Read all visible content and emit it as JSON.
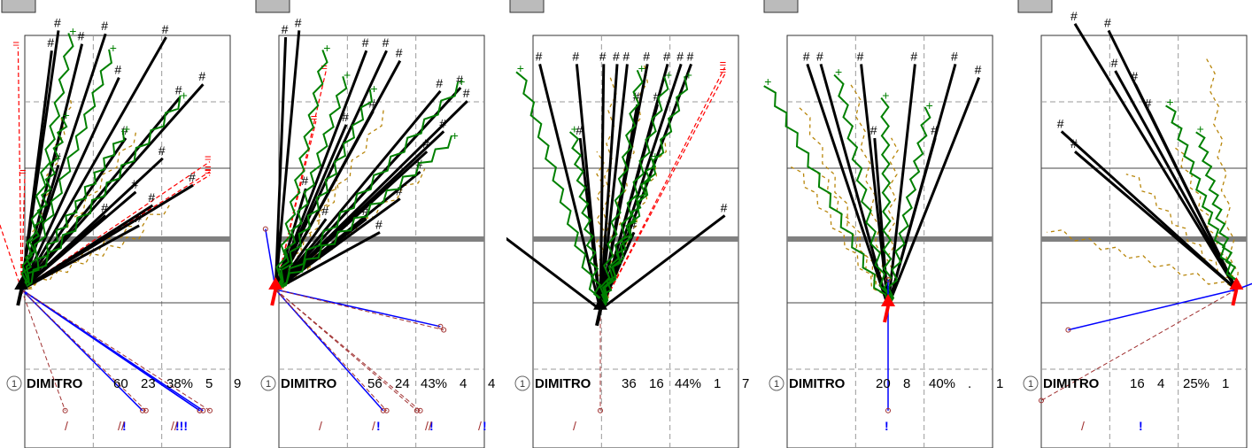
{
  "chart_data": {
    "type": "scatter",
    "panels": [
      {
        "player_number": "1",
        "player_name": "DIMITRO",
        "stats": [
          "60",
          "23",
          "38%",
          "5",
          "9"
        ],
        "shooter_marker_color": "#000000",
        "origin": [
          -1.05,
          -0.75
        ],
        "shot_endpoints": [
          [
            -0.5,
            3.1
          ],
          [
            0.2,
            3.05
          ],
          [
            1.1,
            3.0
          ],
          [
            1.3,
            2.1
          ],
          [
            1.65,
            2.3
          ],
          [
            0.5,
            1.5
          ],
          [
            1.05,
            1.2
          ],
          [
            0.65,
            0.7
          ],
          [
            0.9,
            0.5
          ],
          [
            0.2,
            0.35
          ],
          [
            0.7,
            0.2
          ],
          [
            -0.5,
            1.1
          ],
          [
            1.5,
            0.8
          ],
          [
            0.4,
            2.4
          ],
          [
            -0.6,
            2.8
          ],
          [
            -0.15,
            2.9
          ]
        ],
        "green_endpoints": [
          [
            -0.3,
            3.05
          ],
          [
            0.3,
            2.8
          ],
          [
            1.35,
            2.1
          ],
          [
            0.5,
            1.6
          ],
          [
            -0.4,
            1.8
          ]
        ],
        "miss_endpoints": [
          [
            0.7,
            1.6
          ],
          [
            1.2,
            0.5
          ],
          [
            0.8,
            0.1
          ],
          [
            -0.3,
            2.2
          ]
        ],
        "red_dashed_endpoints": [
          [
            1.75,
            1.15
          ],
          [
            1.75,
            1.0
          ],
          [
            1.75,
            0.95
          ],
          [
            -1.1,
            2.85
          ],
          [
            -1.0,
            0.95
          ],
          [
            -1.4,
            0.3
          ]
        ],
        "blue_endpoints": [
          [
            0.75,
            -2.55
          ],
          [
            1.6,
            -2.55
          ],
          [
            1.6,
            -2.55
          ],
          [
            1.65,
            -2.55
          ]
        ],
        "blue_marks": [
          "!",
          "!!!"
        ],
        "dashed_red_lower": [
          [
            -0.4,
            -2.55
          ],
          [
            0.8,
            -2.55
          ],
          [
            1.75,
            -2.55
          ]
        ],
        "red_marks": [
          "/",
          "//",
          "//"
        ]
      },
      {
        "player_number": "1",
        "player_name": "DIMITRO",
        "stats": [
          "56",
          "24",
          "43%",
          "4",
          "4"
        ],
        "shooter_marker_color": "#ff0000",
        "origin": [
          -1.05,
          -0.75
        ],
        "shot_endpoints": [
          [
            -0.9,
            3.0
          ],
          [
            -0.7,
            3.1
          ],
          [
            0.3,
            2.8
          ],
          [
            0.6,
            2.8
          ],
          [
            0.8,
            2.65
          ],
          [
            1.4,
            2.2
          ],
          [
            1.7,
            2.25
          ],
          [
            1.8,
            2.05
          ],
          [
            0.4,
            1.9
          ],
          [
            1.2,
            1.3
          ],
          [
            1.45,
            1.6
          ],
          [
            0.8,
            0.6
          ],
          [
            0.3,
            0.3
          ],
          [
            -0.3,
            0.3
          ],
          [
            0.0,
            1.7
          ],
          [
            0.5,
            0.1
          ],
          [
            -0.6,
            0.75
          ],
          [
            1.1,
            1.0
          ]
        ],
        "green_endpoints": [
          [
            -0.3,
            2.8
          ],
          [
            1.7,
            2.3
          ],
          [
            1.6,
            1.5
          ],
          [
            0.4,
            2.2
          ],
          [
            0.0,
            2.4
          ]
        ],
        "miss_endpoints": [
          [
            0.6,
            1.9
          ],
          [
            1.2,
            1.0
          ],
          [
            0.2,
            0.2
          ],
          [
            -0.1,
            0.9
          ]
        ],
        "red_dashed_endpoints": [
          [
            -0.3,
            2.5
          ],
          [
            -0.45,
            1.75
          ]
        ],
        "blue_endpoints": [
          [
            0.55,
            -2.55
          ],
          [
            1.4,
            -1.3
          ],
          [
            -1.2,
            0.15
          ]
        ],
        "blue_marks": [
          "!",
          "!",
          "!"
        ],
        "dashed_red_lower": [
          [
            0.6,
            -2.55
          ],
          [
            1.05,
            -2.55
          ],
          [
            1.1,
            -2.55
          ],
          [
            1.45,
            -1.35
          ]
        ],
        "red_marks": [
          "/",
          "/",
          "//",
          "/"
        ]
      },
      {
        "player_number": "1",
        "player_name": "DIMITRO",
        "stats": [
          "36",
          "16",
          "44%",
          "1",
          "7"
        ],
        "shooter_marker_color": "#000000",
        "origin": [
          0.0,
          -1.05
        ],
        "shot_endpoints": [
          [
            -0.9,
            2.6
          ],
          [
            -0.35,
            2.6
          ],
          [
            0.05,
            2.6
          ],
          [
            0.25,
            2.6
          ],
          [
            0.4,
            2.6
          ],
          [
            0.7,
            2.6
          ],
          [
            1.0,
            2.6
          ],
          [
            1.2,
            2.6
          ],
          [
            1.35,
            2.6
          ],
          [
            0.55,
            2.0
          ],
          [
            0.85,
            2.0
          ],
          [
            -0.3,
            1.5
          ],
          [
            -1.85,
            0.35
          ],
          [
            1.85,
            0.35
          ],
          [
            0.5,
            0.1
          ]
        ],
        "green_endpoints": [
          [
            -1.2,
            2.5
          ],
          [
            -0.4,
            1.6
          ],
          [
            0.6,
            2.5
          ],
          [
            1.0,
            2.4
          ],
          [
            1.3,
            2.4
          ],
          [
            0.8,
            1.2
          ]
        ],
        "miss_endpoints": [
          [
            0.2,
            2.4
          ],
          [
            0.7,
            2.6
          ],
          [
            1.0,
            1.5
          ],
          [
            0.0,
            1.3
          ]
        ],
        "red_dashed_endpoints": [
          [
            1.85,
            2.55
          ],
          [
            1.85,
            2.45
          ]
        ],
        "blue_endpoints": [],
        "blue_marks": [],
        "dashed_red_lower": [
          [
            0.0,
            -2.55
          ]
        ],
        "red_marks": [
          "/"
        ]
      },
      {
        "player_number": "1",
        "player_name": "DIMITRO",
        "stats": [
          "20",
          "8",
          "40%",
          ".",
          "1"
        ],
        "shooter_marker_color": "#ff0000",
        "origin": [
          0.5,
          -1.0
        ],
        "shot_endpoints": [
          [
            -0.7,
            2.6
          ],
          [
            -0.5,
            2.6
          ],
          [
            0.1,
            2.6
          ],
          [
            0.9,
            2.6
          ],
          [
            1.5,
            2.6
          ],
          [
            1.85,
            2.4
          ],
          [
            0.3,
            1.5
          ],
          [
            1.2,
            1.5
          ]
        ],
        "green_endpoints": [
          [
            -1.3,
            2.3
          ],
          [
            -0.25,
            2.45
          ],
          [
            0.45,
            2.1
          ],
          [
            1.1,
            1.95
          ]
        ],
        "miss_endpoints": [
          [
            -0.8,
            2.0
          ],
          [
            0.0,
            2.3
          ],
          [
            -0.5,
            1.0
          ],
          [
            0.6,
            1.5
          ],
          [
            -0.9,
            1.1
          ]
        ],
        "red_dashed_endpoints": [],
        "blue_endpoints": [
          [
            0.5,
            -2.55
          ],
          [
            0.5,
            -0.6
          ]
        ],
        "blue_marks": [
          "!"
        ],
        "dashed_red_lower": [],
        "red_marks": []
      },
      {
        "player_number": "1",
        "player_name": "DIMITRO",
        "stats": [
          "16",
          "4",
          "25%",
          "1"
        ],
        "shooter_marker_color": "#ff0000",
        "origin": [
          1.9,
          -0.75
        ],
        "shot_endpoints": [
          [
            -0.5,
            3.2
          ],
          [
            0.0,
            3.1
          ],
          [
            0.4,
            2.3
          ],
          [
            0.1,
            2.5
          ],
          [
            -0.7,
            1.6
          ],
          [
            -0.5,
            1.3
          ],
          [
            0.6,
            1.9
          ]
        ],
        "green_endpoints": [
          [
            0.9,
            2.0
          ],
          [
            1.35,
            1.6
          ]
        ],
        "miss_endpoints": [
          [
            1.5,
            2.7
          ],
          [
            1.0,
            1.4
          ],
          [
            -0.9,
            0.15
          ],
          [
            0.3,
            1.0
          ]
        ],
        "red_dashed_endpoints": [],
        "blue_endpoints": [
          [
            -0.6,
            -1.35
          ],
          [
            2.3,
            -0.6
          ]
        ],
        "blue_marks": [
          "!"
        ],
        "dashed_red_lower": [
          [
            -1.0,
            -2.4
          ]
        ],
        "red_marks": [
          "/"
        ]
      }
    ],
    "marks": {
      "made": "#",
      "green": "+",
      "red_double": "=",
      "red": "/",
      "blue": "!"
    },
    "colors": {
      "made": "#000000",
      "assisted": "#008000",
      "miss": "#b8860b",
      "red": "#ff0000",
      "blue": "#0000ff",
      "court_line": "#808080"
    }
  }
}
